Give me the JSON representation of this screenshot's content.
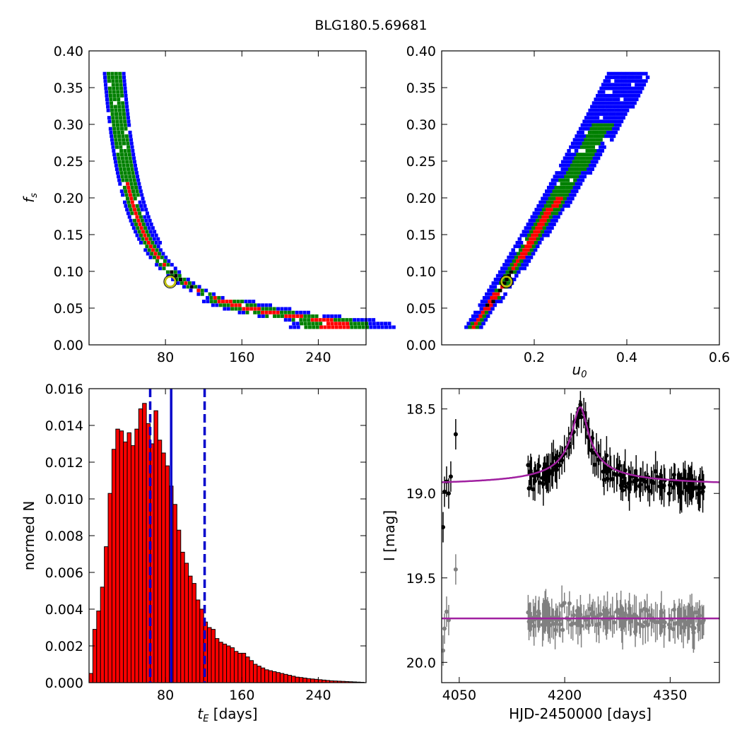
{
  "figure_title": "BLG180.5.69681",
  "colors": {
    "outer": "#0000ff",
    "mid": "#008000",
    "inner": "#ff0000",
    "best": "#000000",
    "marker_ring": "#bfbf00",
    "hist_bar": "#ff0000",
    "vline": "#0000cc",
    "model": "#a020a0",
    "data_main": "#000000",
    "data_resid": "#808080"
  },
  "chart_data": [
    {
      "type": "heatmap",
      "panel": "tE-fs",
      "xlabel": "",
      "ylabel": "f_s",
      "xlim": [
        0,
        290
      ],
      "ylim": [
        0.0,
        0.4
      ],
      "xticks": [
        80,
        160,
        240
      ],
      "yticks": [
        0.0,
        0.05,
        0.1,
        0.15,
        0.2,
        0.25,
        0.3,
        0.35,
        0.4
      ],
      "xtick_labels": [
        "80",
        "160",
        "240"
      ],
      "ytick_labels": [
        "0.00",
        "0.05",
        "0.10",
        "0.15",
        "0.20",
        "0.25",
        "0.30",
        "0.35",
        "0.40"
      ],
      "levels": [
        "outer",
        "mid",
        "inner",
        "best"
      ],
      "best_fit": {
        "x": 85,
        "y": 0.086
      }
    },
    {
      "type": "heatmap",
      "panel": "u0-fs",
      "xlabel": "u_0",
      "ylabel": "",
      "xlim": [
        0.0,
        0.6
      ],
      "ylim": [
        0.0,
        0.4
      ],
      "xticks": [
        0.2,
        0.4,
        0.6
      ],
      "yticks": [
        0.0,
        0.05,
        0.1,
        0.15,
        0.2,
        0.25,
        0.3,
        0.35,
        0.4
      ],
      "xtick_labels": [
        "0.2",
        "0.4",
        "0.6"
      ],
      "ytick_labels": [
        "0.00",
        "0.05",
        "0.10",
        "0.15",
        "0.20",
        "0.25",
        "0.30",
        "0.35",
        "0.40"
      ],
      "levels": [
        "outer",
        "mid",
        "inner",
        "best"
      ],
      "best_fit": {
        "x": 0.14,
        "y": 0.086
      }
    },
    {
      "type": "bar",
      "panel": "tE-histogram",
      "xlabel": "t_E [days]",
      "ylabel": "normed N",
      "xlim": [
        0,
        290
      ],
      "ylim": [
        0.0,
        0.016
      ],
      "xticks": [
        80,
        160,
        240
      ],
      "yticks": [
        0.0,
        0.002,
        0.004,
        0.006,
        0.008,
        0.01,
        0.012,
        0.014,
        0.016
      ],
      "xtick_labels": [
        "80",
        "160",
        "240"
      ],
      "ytick_labels": [
        "0.000",
        "0.002",
        "0.004",
        "0.006",
        "0.008",
        "0.010",
        "0.012",
        "0.014",
        "0.016"
      ],
      "bin_start": 0,
      "bin_width": 4,
      "values": [
        0.0005,
        0.0029,
        0.0039,
        0.0052,
        0.0074,
        0.0103,
        0.0127,
        0.0138,
        0.0137,
        0.0131,
        0.0136,
        0.0129,
        0.0138,
        0.0149,
        0.0152,
        0.0141,
        0.013,
        0.0148,
        0.0132,
        0.0125,
        0.0118,
        0.0107,
        0.0097,
        0.0083,
        0.0071,
        0.0065,
        0.0058,
        0.0054,
        0.0045,
        0.004,
        0.0033,
        0.003,
        0.0029,
        0.0024,
        0.0022,
        0.0021,
        0.002,
        0.0019,
        0.0017,
        0.0016,
        0.0016,
        0.0014,
        0.0012,
        0.001,
        0.0009,
        0.0008,
        0.0007,
        0.00065,
        0.0006,
        0.00055,
        0.0005,
        0.00045,
        0.0004,
        0.00035,
        0.0003,
        0.00028,
        0.00025,
        0.00022,
        0.0002,
        0.00018,
        0.00016,
        0.00014,
        0.00012,
        0.0001,
        9e-05,
        8e-05,
        7e-05,
        6e-05,
        5e-05,
        4e-05,
        3e-05,
        2e-05
      ],
      "vlines": [
        {
          "x": 64,
          "style": "dashed"
        },
        {
          "x": 86,
          "style": "solid"
        },
        {
          "x": 121,
          "style": "dashed"
        }
      ]
    },
    {
      "type": "scatter",
      "panel": "light-curve",
      "xlabel": "HJD-2450000 [days]",
      "ylabel": "I [mag]",
      "xlim": [
        4025,
        4420
      ],
      "ylim": [
        20.12,
        18.38
      ],
      "xticks": [
        4050,
        4200,
        4350
      ],
      "yticks": [
        18.5,
        19.0,
        19.5,
        20.0
      ],
      "xtick_labels": [
        "4050",
        "4200",
        "4350"
      ],
      "ytick_labels": [
        "18.5",
        "19.0",
        "19.5",
        "20.0"
      ],
      "model": {
        "baseline": 18.96,
        "peak_mag": 18.49,
        "t0": 4222,
        "width_days": 12,
        "shape": "sharp peak"
      },
      "resid_model": {
        "level": 19.74
      },
      "series": [
        {
          "role": "main",
          "observations": [
            {
              "x": 4027,
              "y": 19.2
            },
            {
              "x": 4029,
              "y": 18.99
            },
            {
              "x": 4032,
              "y": 18.93
            },
            {
              "x": 4035,
              "y": 19.0
            },
            {
              "x": 4038,
              "y": 18.9
            },
            {
              "x": 4045,
              "y": 18.65
            }
          ],
          "dense_ranges": [
            [
              4148,
              4400
            ]
          ]
        },
        {
          "role": "residual",
          "observations": [
            {
              "x": 4027,
              "y": 19.93
            },
            {
              "x": 4029,
              "y": 19.8
            },
            {
              "x": 4032,
              "y": 19.7
            },
            {
              "x": 4035,
              "y": 19.75
            },
            {
              "x": 4045,
              "y": 19.45
            }
          ],
          "dense_ranges": [
            [
              4148,
              4400
            ]
          ]
        }
      ]
    }
  ]
}
